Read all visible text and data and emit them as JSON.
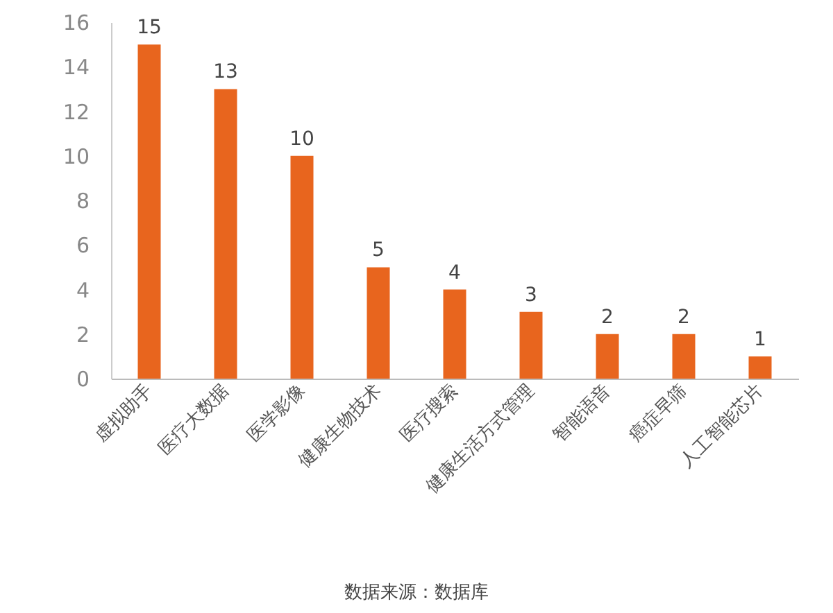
{
  "chart_data": {
    "type": "bar",
    "categories": [
      "虚拟助手",
      "医疗大数据",
      "医学影像",
      "健康生物技术",
      "医疗搜索",
      "健康生活方式管理",
      "智能语音",
      "癌症早筛",
      "人工智能芯片"
    ],
    "values": [
      15,
      13,
      10,
      5,
      4,
      3,
      2,
      2,
      1
    ],
    "color": "#e8651e",
    "ylim": [
      0,
      16
    ],
    "yticks": [
      0,
      2,
      4,
      6,
      8,
      10,
      12,
      14,
      16
    ],
    "grid": false,
    "data_labels": true,
    "annotations": [
      "数据来源：数据库"
    ]
  }
}
